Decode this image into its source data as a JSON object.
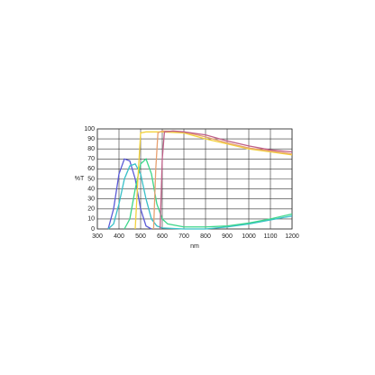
{
  "chart_data": {
    "type": "line",
    "xlabel": "nm",
    "ylabel": "%T",
    "xlim": [
      300,
      1200
    ],
    "xticks": [
      300,
      400,
      500,
      600,
      700,
      800,
      900,
      1000,
      1100,
      1200
    ],
    "ylim": [
      0,
      100
    ],
    "yticks": [
      0,
      10,
      20,
      30,
      40,
      50,
      60,
      70,
      80,
      90,
      100
    ],
    "grid": true,
    "series": [
      {
        "color": "#5a5ad6",
        "x": [
          350,
          375,
          400,
          425,
          450,
          475,
          500,
          525,
          550
        ],
        "values": [
          0,
          20,
          55,
          70,
          68,
          50,
          20,
          3,
          0
        ]
      },
      {
        "color": "#38c0c8",
        "x": [
          350,
          375,
          400,
          425,
          450,
          475,
          500,
          525,
          550,
          575,
          600,
          700,
          800,
          900,
          1000,
          1100,
          1200
        ],
        "values": [
          0,
          5,
          25,
          50,
          63,
          65,
          55,
          30,
          10,
          3,
          1,
          0,
          0,
          2,
          5,
          9,
          13
        ]
      },
      {
        "color": "#3cd68a",
        "x": [
          425,
          450,
          475,
          500,
          525,
          550,
          575,
          600,
          625,
          700,
          800,
          900,
          1000,
          1100,
          1200
        ],
        "values": [
          0,
          10,
          40,
          65,
          70,
          55,
          25,
          10,
          5,
          2,
          2,
          3,
          6,
          10,
          15
        ]
      },
      {
        "color": "#f2d23c",
        "x": [
          475,
          490,
          500,
          525,
          600,
          700,
          800,
          900,
          1000,
          1100,
          1200
        ],
        "values": [
          0,
          60,
          96,
          97,
          97,
          96,
          90,
          85,
          80,
          77,
          74
        ]
      },
      {
        "color": "#e8a070",
        "x": [
          560,
          570,
          580,
          600,
          700,
          800,
          900,
          1000,
          1100,
          1200
        ],
        "values": [
          0,
          60,
          96,
          98,
          97,
          92,
          86,
          81,
          78,
          75
        ]
      },
      {
        "color": "#c06088",
        "x": [
          590,
          600,
          610,
          650,
          700,
          800,
          900,
          1000,
          1100,
          1200
        ],
        "values": [
          0,
          70,
          97,
          98,
          97,
          94,
          88,
          83,
          79,
          77
        ]
      }
    ]
  }
}
